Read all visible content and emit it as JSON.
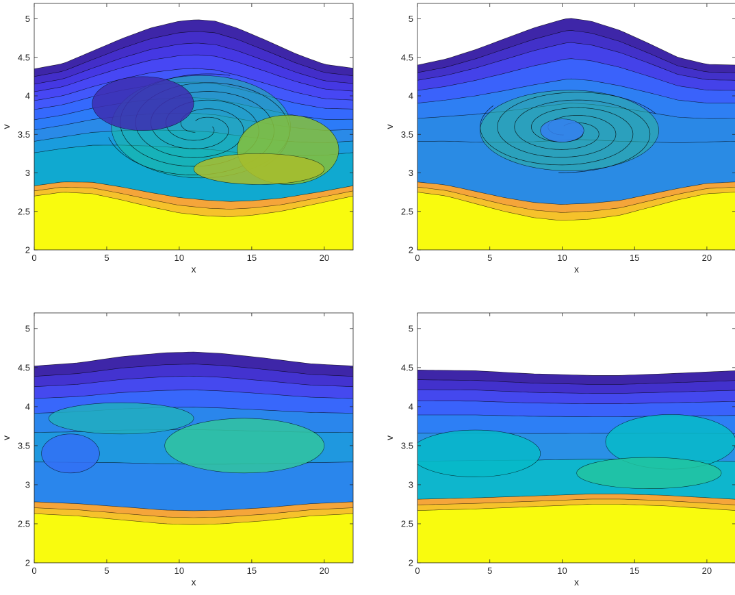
{
  "chart_data": [
    {
      "type": "contour",
      "xlabel": "x",
      "ylabel": "v",
      "xlim": [
        0,
        21.99
      ],
      "ylim": [
        2,
        5.2
      ],
      "xticks": [
        "0",
        "5",
        "10",
        "15",
        "20"
      ],
      "yticks": [
        "2",
        "2.5",
        "3",
        "3.5",
        "4",
        "4.5",
        "5"
      ],
      "colormap": "parula",
      "filled_bottom_color": "#f9fb0e",
      "background": "#ffffff",
      "top_edge": [
        [
          0,
          4.35
        ],
        [
          2,
          4.42
        ],
        [
          4,
          4.58
        ],
        [
          6,
          4.74
        ],
        [
          8,
          4.88
        ],
        [
          10,
          4.97
        ],
        [
          11.2,
          4.99
        ],
        [
          12.5,
          4.97
        ],
        [
          14,
          4.88
        ],
        [
          16,
          4.72
        ],
        [
          18,
          4.55
        ],
        [
          20,
          4.41
        ],
        [
          21.99,
          4.36
        ]
      ],
      "bottom_edge": [
        [
          0,
          2.7
        ],
        [
          2,
          2.75
        ],
        [
          4,
          2.73
        ],
        [
          6,
          2.65
        ],
        [
          8,
          2.56
        ],
        [
          10,
          2.48
        ],
        [
          12,
          2.44
        ],
        [
          13.5,
          2.43
        ],
        [
          15,
          2.45
        ],
        [
          17,
          2.5
        ],
        [
          19,
          2.58
        ],
        [
          21.99,
          2.7
        ]
      ],
      "bands": [
        {
          "level": 0.0,
          "color": "#3e26a8"
        },
        {
          "level": 0.06,
          "color": "#432ec9"
        },
        {
          "level": 0.12,
          "color": "#4538e3"
        },
        {
          "level": 0.18,
          "color": "#4747f4"
        },
        {
          "level": 0.25,
          "color": "#4258fb"
        },
        {
          "level": 0.32,
          "color": "#3569fd"
        },
        {
          "level": 0.4,
          "color": "#2c7bf8"
        },
        {
          "level": 0.48,
          "color": "#2a8ae8"
        },
        {
          "level": 0.57,
          "color": "#1a9cdd"
        },
        {
          "level": 0.66,
          "color": "#10a9d0"
        }
      ],
      "features": [
        {
          "kind": "vortex",
          "center": [
            11.5,
            3.6
          ],
          "radius": [
            6.5,
            0.7
          ],
          "turns": 1.8,
          "color": "#1dbaa6"
        },
        {
          "kind": "blob",
          "center": [
            17.5,
            3.3
          ],
          "radius": [
            3.5,
            0.45
          ],
          "color": "#86bf3a"
        },
        {
          "kind": "blob",
          "center": [
            15.5,
            3.05
          ],
          "radius": [
            4.5,
            0.2
          ],
          "color": "#a9bd2c"
        },
        {
          "kind": "blob",
          "center": [
            7.5,
            3.9
          ],
          "radius": [
            3.5,
            0.35
          ],
          "color": "#3d2eb0"
        }
      ]
    },
    {
      "type": "contour",
      "xlabel": "x",
      "ylabel": "v",
      "xlim": [
        0,
        21.99
      ],
      "ylim": [
        2,
        5.2
      ],
      "xticks": [
        "0",
        "5",
        "10",
        "15",
        "20"
      ],
      "yticks": [
        "2",
        "2.5",
        "3",
        "3.5",
        "4",
        "4.5",
        "5"
      ],
      "colormap": "parula",
      "filled_bottom_color": "#f9fb0e",
      "background": "#ffffff",
      "top_edge": [
        [
          0,
          4.4
        ],
        [
          2,
          4.48
        ],
        [
          4,
          4.6
        ],
        [
          6,
          4.74
        ],
        [
          8,
          4.88
        ],
        [
          10,
          4.99
        ],
        [
          10.5,
          5.01
        ],
        [
          12,
          4.97
        ],
        [
          14,
          4.85
        ],
        [
          16,
          4.68
        ],
        [
          18,
          4.5
        ],
        [
          20,
          4.41
        ],
        [
          21.99,
          4.4
        ]
      ],
      "bottom_edge": [
        [
          0,
          2.75
        ],
        [
          2,
          2.7
        ],
        [
          4,
          2.6
        ],
        [
          6,
          2.5
        ],
        [
          8,
          2.42
        ],
        [
          10,
          2.38
        ],
        [
          12,
          2.4
        ],
        [
          14,
          2.45
        ],
        [
          16,
          2.55
        ],
        [
          18,
          2.65
        ],
        [
          20,
          2.73
        ],
        [
          21.99,
          2.75
        ]
      ],
      "bands": [
        {
          "level": 0.0,
          "color": "#3e26a8"
        },
        {
          "level": 0.06,
          "color": "#4231c9"
        },
        {
          "level": 0.12,
          "color": "#4442e9"
        },
        {
          "level": 0.2,
          "color": "#3a62fb"
        },
        {
          "level": 0.3,
          "color": "#2e7ff3"
        },
        {
          "level": 0.42,
          "color": "#2a88e6"
        },
        {
          "level": 0.6,
          "color": "#2a8be4"
        }
      ],
      "features": [
        {
          "kind": "vortex",
          "center": [
            10.5,
            3.55
          ],
          "radius": [
            6.5,
            0.55
          ],
          "turns": 1.6,
          "color": "#2bb59a"
        },
        {
          "kind": "blob",
          "center": [
            10.0,
            3.55
          ],
          "radius": [
            1.5,
            0.15
          ],
          "color": "#3580f0"
        }
      ]
    },
    {
      "type": "contour",
      "xlabel": "x",
      "ylabel": "v",
      "xlim": [
        0,
        21.99
      ],
      "ylim": [
        2,
        5.2
      ],
      "xticks": [
        "0",
        "5",
        "10",
        "15",
        "20"
      ],
      "yticks": [
        "2",
        "2.5",
        "3",
        "3.5",
        "4",
        "4.5",
        "5"
      ],
      "colormap": "parula",
      "filled_bottom_color": "#f9fb0e",
      "background": "#ffffff",
      "top_edge": [
        [
          0,
          4.52
        ],
        [
          3,
          4.56
        ],
        [
          6,
          4.64
        ],
        [
          9,
          4.69
        ],
        [
          11,
          4.7
        ],
        [
          13,
          4.68
        ],
        [
          16,
          4.62
        ],
        [
          19,
          4.55
        ],
        [
          21.99,
          4.52
        ]
      ],
      "bottom_edge": [
        [
          0,
          2.63
        ],
        [
          3,
          2.6
        ],
        [
          6,
          2.55
        ],
        [
          9,
          2.5
        ],
        [
          11,
          2.49
        ],
        [
          13,
          2.5
        ],
        [
          16,
          2.54
        ],
        [
          19,
          2.6
        ],
        [
          21.99,
          2.63
        ]
      ],
      "bands": [
        {
          "level": 0.0,
          "color": "#3e26a8"
        },
        {
          "level": 0.07,
          "color": "#4333d0"
        },
        {
          "level": 0.14,
          "color": "#4549ef"
        },
        {
          "level": 0.22,
          "color": "#3867fb"
        },
        {
          "level": 0.32,
          "color": "#2a86ec"
        },
        {
          "level": 0.45,
          "color": "#1f98df"
        },
        {
          "level": 0.65,
          "color": "#2a86ec"
        }
      ],
      "features": [
        {
          "kind": "blob",
          "center": [
            14.5,
            3.5
          ],
          "radius": [
            5.5,
            0.35
          ],
          "color": "#31c4a0"
        },
        {
          "kind": "blob",
          "center": [
            6.0,
            3.85
          ],
          "radius": [
            5.0,
            0.2
          ],
          "color": "#21aec0"
        },
        {
          "kind": "blob",
          "center": [
            2.5,
            3.4
          ],
          "radius": [
            2.0,
            0.25
          ],
          "color": "#3370f6"
        }
      ]
    },
    {
      "type": "contour",
      "xlabel": "x",
      "ylabel": "v",
      "xlim": [
        0,
        21.99
      ],
      "ylim": [
        2,
        5.2
      ],
      "xticks": [
        "0",
        "5",
        "10",
        "15",
        "20"
      ],
      "yticks": [
        "2",
        "2.5",
        "3",
        "3.5",
        "4",
        "4.5",
        "5"
      ],
      "colormap": "parula",
      "filled_bottom_color": "#f9fb0e",
      "background": "#ffffff",
      "top_edge": [
        [
          0,
          4.47
        ],
        [
          4,
          4.46
        ],
        [
          8,
          4.42
        ],
        [
          12,
          4.4
        ],
        [
          14,
          4.4
        ],
        [
          17,
          4.42
        ],
        [
          21.99,
          4.46
        ]
      ],
      "bottom_edge": [
        [
          0,
          2.67
        ],
        [
          4,
          2.69
        ],
        [
          8,
          2.72
        ],
        [
          12,
          2.75
        ],
        [
          14,
          2.75
        ],
        [
          17,
          2.73
        ],
        [
          21.99,
          2.67
        ]
      ],
      "bands": [
        {
          "level": 0.0,
          "color": "#3e26a8"
        },
        {
          "level": 0.07,
          "color": "#4231cc"
        },
        {
          "level": 0.14,
          "color": "#4448ee"
        },
        {
          "level": 0.22,
          "color": "#3a62fb"
        },
        {
          "level": 0.32,
          "color": "#2d7ff5"
        },
        {
          "level": 0.45,
          "color": "#2a90e6"
        },
        {
          "level": 0.65,
          "color": "#0eb6cd"
        }
      ],
      "features": [
        {
          "kind": "blob",
          "center": [
            4.0,
            3.4
          ],
          "radius": [
            4.5,
            0.3
          ],
          "color": "#06bac8"
        },
        {
          "kind": "blob",
          "center": [
            17.5,
            3.55
          ],
          "radius": [
            4.5,
            0.35
          ],
          "color": "#07bbc8"
        },
        {
          "kind": "blob",
          "center": [
            16.0,
            3.15
          ],
          "radius": [
            5.0,
            0.2
          ],
          "color": "#22c4a0"
        }
      ]
    }
  ]
}
